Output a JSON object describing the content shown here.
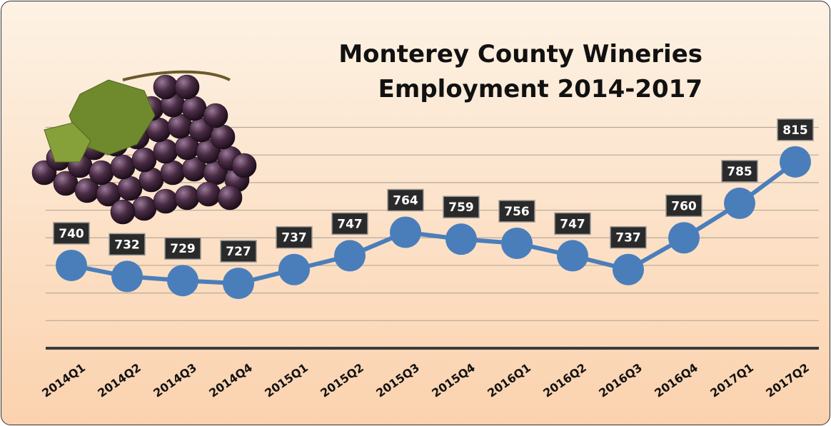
{
  "chart_data": {
    "type": "line",
    "title": "Monterey County Wineries Employment 2014-2017",
    "categories": [
      "2014Q1",
      "2014Q2",
      "2014Q3",
      "2014Q4",
      "2015Q1",
      "2015Q2",
      "2015Q3",
      "2015Q4",
      "2016Q1",
      "2016Q2",
      "2016Q3",
      "2016Q4",
      "2017Q1",
      "2017Q2"
    ],
    "values": [
      740,
      732,
      729,
      727,
      737,
      747,
      764,
      759,
      756,
      747,
      737,
      760,
      785,
      815
    ],
    "color": "#4a7ebb",
    "ylim": [
      680,
      840
    ],
    "yticks": [
      680,
      700,
      720,
      740,
      760,
      780,
      800,
      820,
      840
    ],
    "grid": true
  }
}
